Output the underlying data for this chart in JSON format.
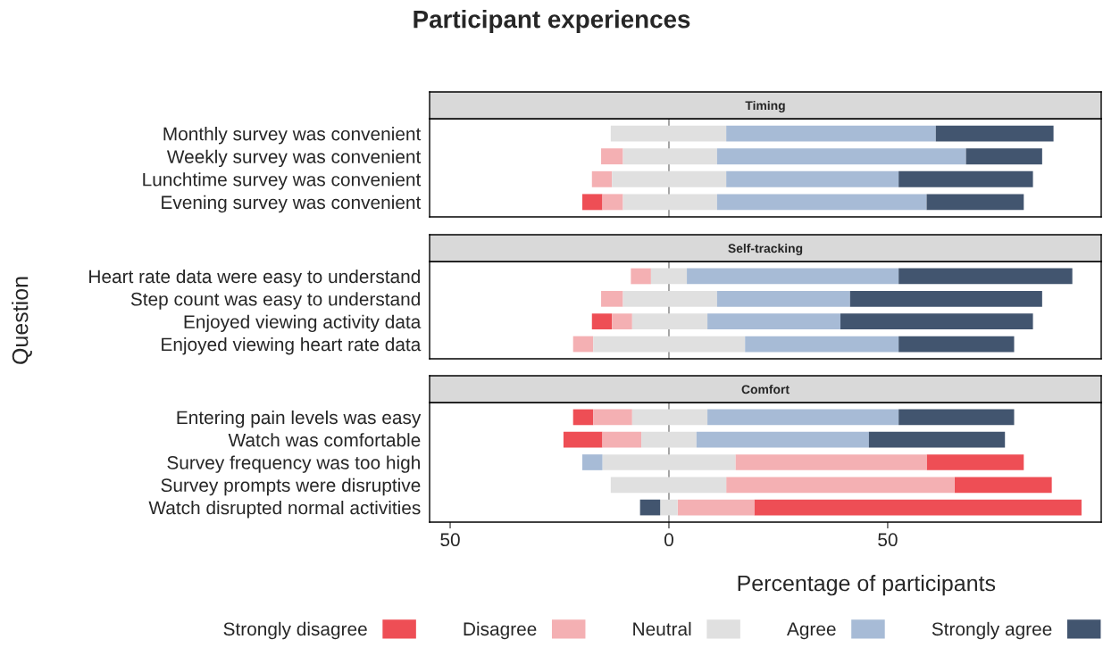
{
  "chart_data": [
    {
      "type": "bar",
      "orientation": "horizontal",
      "title": "Participant experiences",
      "subtitle": "Timing",
      "legend": "bottom",
      "categories": [
        "Monthly survey was convenient",
        "Weekly survey was convenient",
        "Lunchtime survey was convenient",
        "Evening survey was convenient"
      ],
      "xlim": [
        -54.7,
        98.8
      ],
      "tick_labels": "y",
      "ref_lines": [
        {
          "axis": "x",
          "value": 0,
          "color": "#808080"
        }
      ],
      "series": [
        {
          "name": "Strongly disagree",
          "color": "#ee4e55",
          "base": [
            null,
            null,
            null,
            -19.8
          ],
          "values": [
            null,
            null,
            null,
            4.6
          ]
        },
        {
          "name": "Disagree",
          "color": "#f4b0b3",
          "base": [
            null,
            -15.5,
            -17.6,
            -15.2
          ],
          "values": [
            null,
            5.0,
            4.6,
            4.7
          ]
        },
        {
          "name": "Neutral",
          "color": "#e0e0e0",
          "base": [
            -13.3,
            -10.5,
            -13.0,
            -10.5
          ],
          "values": [
            26.4,
            21.5,
            26.1,
            21.5
          ]
        },
        {
          "name": "Agree",
          "color": "#a7bbd6",
          "base": [
            13.1,
            11.0,
            13.1,
            11.0
          ],
          "values": [
            47.9,
            56.9,
            39.4,
            47.9
          ]
        },
        {
          "name": "Strongly agree",
          "color": "#42556f",
          "base": [
            61.0,
            67.9,
            52.5,
            58.9
          ],
          "values": [
            26.9,
            17.4,
            30.7,
            22.2
          ]
        }
      ]
    },
    {
      "type": "bar",
      "orientation": "horizontal",
      "subtitle": "Self-tracking",
      "ylabel": "Question",
      "categories": [
        "Heart rate data were easy to understand",
        "Step count was easy to understand",
        "Enjoyed viewing activity data",
        "Enjoyed viewing heart rate data"
      ],
      "xlim": [
        -54.7,
        98.8
      ],
      "tick_labels": "y",
      "ref_lines": [
        {
          "axis": "x",
          "value": 0,
          "color": "#808080"
        }
      ],
      "series": [
        {
          "color": "#ee4e55",
          "base": [
            null,
            null,
            -17.6,
            null
          ],
          "values": [
            null,
            null,
            4.6,
            null
          ]
        },
        {
          "color": "#f4b0b3",
          "base": [
            -8.7,
            -15.5,
            -13.0,
            -21.9
          ],
          "values": [
            4.6,
            5.0,
            4.6,
            4.6
          ]
        },
        {
          "color": "#e0e0e0",
          "base": [
            -4.1,
            -10.5,
            -8.4,
            -17.3
          ],
          "values": [
            8.2,
            21.5,
            17.2,
            34.7
          ]
        },
        {
          "color": "#a7bbd6",
          "base": [
            4.1,
            11.0,
            8.8,
            17.4
          ],
          "values": [
            48.4,
            30.4,
            30.4,
            35.1
          ]
        },
        {
          "color": "#42556f",
          "base": [
            52.5,
            41.4,
            39.2,
            52.5
          ],
          "values": [
            39.7,
            43.9,
            44.0,
            26.4
          ]
        }
      ]
    },
    {
      "type": "bar",
      "orientation": "horizontal",
      "subtitle": "Comfort",
      "xlabel": "Percentage of participants",
      "categories": [
        "Entering pain levels was easy",
        "Watch was comfortable",
        "Survey frequency was too high",
        "Survey prompts were disruptive",
        "Watch disrupted normal activities"
      ],
      "xlim": [
        -54.7,
        98.8
      ],
      "xticks": [
        {
          "value": -50,
          "label": "50"
        },
        0,
        50
      ],
      "ref_lines": [
        {
          "axis": "x",
          "value": 0,
          "color": "#808080"
        }
      ],
      "series": [
        {
          "color": "#ee4e55",
          "base": [
            -21.9,
            -24.1,
            58.9,
            65.3,
            19.5
          ],
          "values": [
            4.6,
            8.9,
            22.2,
            22.2,
            74.8
          ]
        },
        {
          "color": "#f4b0b3",
          "base": [
            -17.3,
            -15.2,
            15.2,
            13.1,
            2.0
          ],
          "values": [
            8.9,
            8.9,
            43.7,
            52.2,
            17.5
          ]
        },
        {
          "color": "#e0e0e0",
          "base": [
            -8.4,
            -6.3,
            -15.2,
            -13.3,
            -2.0
          ],
          "values": [
            17.2,
            12.6,
            30.4,
            26.4,
            4.0
          ]
        },
        {
          "color": "#a7bbd6",
          "base": [
            8.8,
            6.3,
            -19.8,
            null,
            null
          ],
          "values": [
            43.7,
            39.4,
            4.6,
            null,
            null
          ]
        },
        {
          "color": "#42556f",
          "base": [
            52.5,
            45.7,
            null,
            null,
            -6.6
          ],
          "values": [
            26.4,
            31.1,
            null,
            null,
            4.6
          ]
        }
      ]
    }
  ]
}
